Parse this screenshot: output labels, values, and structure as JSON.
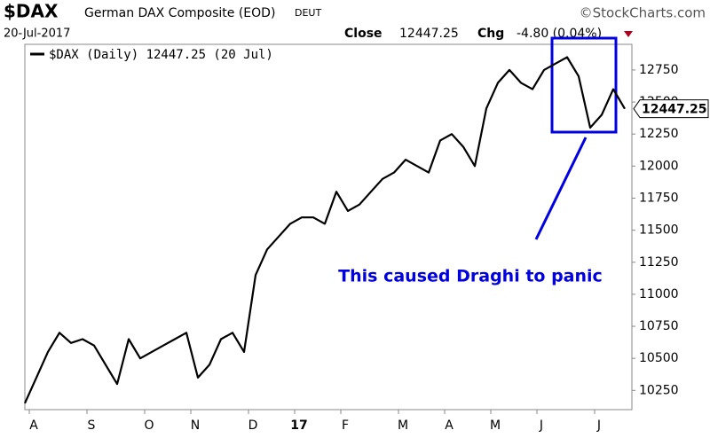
{
  "chart_data": {
    "type": "line",
    "title": "$DAX",
    "subtitle": "German DAX Composite (EOD)",
    "exchange": "DEUT",
    "credit": "©StockCharts.com",
    "date": "20-Jul-2017",
    "close_label": "Close",
    "close_value": "12447.25",
    "chg_label": "Chg",
    "chg_value": "-4.80 (0.04%)",
    "annotation": "This caused Draghi to panic",
    "categories": [
      null,
      "A",
      null,
      null,
      null,
      null,
      "S",
      null,
      null,
      null,
      null,
      "O",
      null,
      null,
      null,
      "N",
      null,
      null,
      null,
      null,
      "D",
      null,
      null,
      null,
      "17",
      null,
      null,
      null,
      "F",
      null,
      null,
      null,
      null,
      "M",
      null,
      null,
      null,
      "A",
      null,
      null,
      null,
      "M",
      null,
      null,
      null,
      "J",
      null,
      null,
      null,
      null,
      "J",
      null,
      null
    ],
    "series": [
      {
        "name": "$DAX (Daily) 12447.25 (20 Jul)",
        "color": "#000000",
        "values": [
          10150,
          10350,
          10550,
          10700,
          10620,
          10650,
          10600,
          10450,
          10300,
          10650,
          10500,
          10550,
          10600,
          10650,
          10700,
          10350,
          10450,
          10650,
          10700,
          10550,
          11150,
          11350,
          11450,
          11550,
          11600,
          11600,
          11550,
          11800,
          11650,
          11700,
          11800,
          11900,
          11950,
          12050,
          12000,
          11950,
          12200,
          12250,
          12150,
          12000,
          12450,
          12650,
          12750,
          12650,
          12600,
          12750,
          12800,
          12850,
          12700,
          12300,
          12400,
          12600,
          12447.25
        ]
      }
    ],
    "ylim": [
      10100,
      12950
    ],
    "yticks": [
      10250,
      10500,
      10750,
      11000,
      11250,
      11500,
      11750,
      12000,
      12250,
      12500,
      12750
    ],
    "grid": false
  }
}
